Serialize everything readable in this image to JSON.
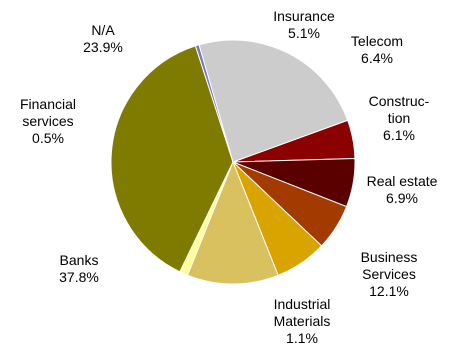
{
  "chart_data": {
    "type": "pie",
    "title": "",
    "start_angle_deg": 70,
    "direction": "clockwise",
    "slices": [
      {
        "label": "Insurance",
        "label_lines": [
          "Insurance",
          "5.1%"
        ],
        "value": 5.1,
        "color": "#8b0000"
      },
      {
        "label": "Telecom",
        "label_lines": [
          "Telecom",
          "6.4%"
        ],
        "value": 6.4,
        "color": "#5a0000"
      },
      {
        "label": "Construction",
        "label_lines": [
          "Construc-",
          "tion",
          "6.1%"
        ],
        "value": 6.1,
        "color": "#a33a00"
      },
      {
        "label": "Real estate",
        "label_lines": [
          "Real estate",
          "6.9%"
        ],
        "value": 6.9,
        "color": "#d9a300"
      },
      {
        "label": "Business Services",
        "label_lines": [
          "Business",
          "Services",
          "12.1%"
        ],
        "value": 12.1,
        "color": "#d8c15e"
      },
      {
        "label": "Industrial Materials",
        "label_lines": [
          "Industrial",
          "Materials",
          "1.1%"
        ],
        "value": 1.1,
        "color": "#ffff99"
      },
      {
        "label": "Banks",
        "label_lines": [
          "Banks",
          "37.8%"
        ],
        "value": 37.8,
        "color": "#7f7a00"
      },
      {
        "label": "Financial services",
        "label_lines": [
          "Financial",
          "services",
          "0.5%"
        ],
        "value": 0.5,
        "color": "#7777cc"
      },
      {
        "label": "N/A",
        "label_lines": [
          "N/A",
          "23.9%"
        ],
        "value": 23.9,
        "color": "#cccccc"
      }
    ]
  }
}
